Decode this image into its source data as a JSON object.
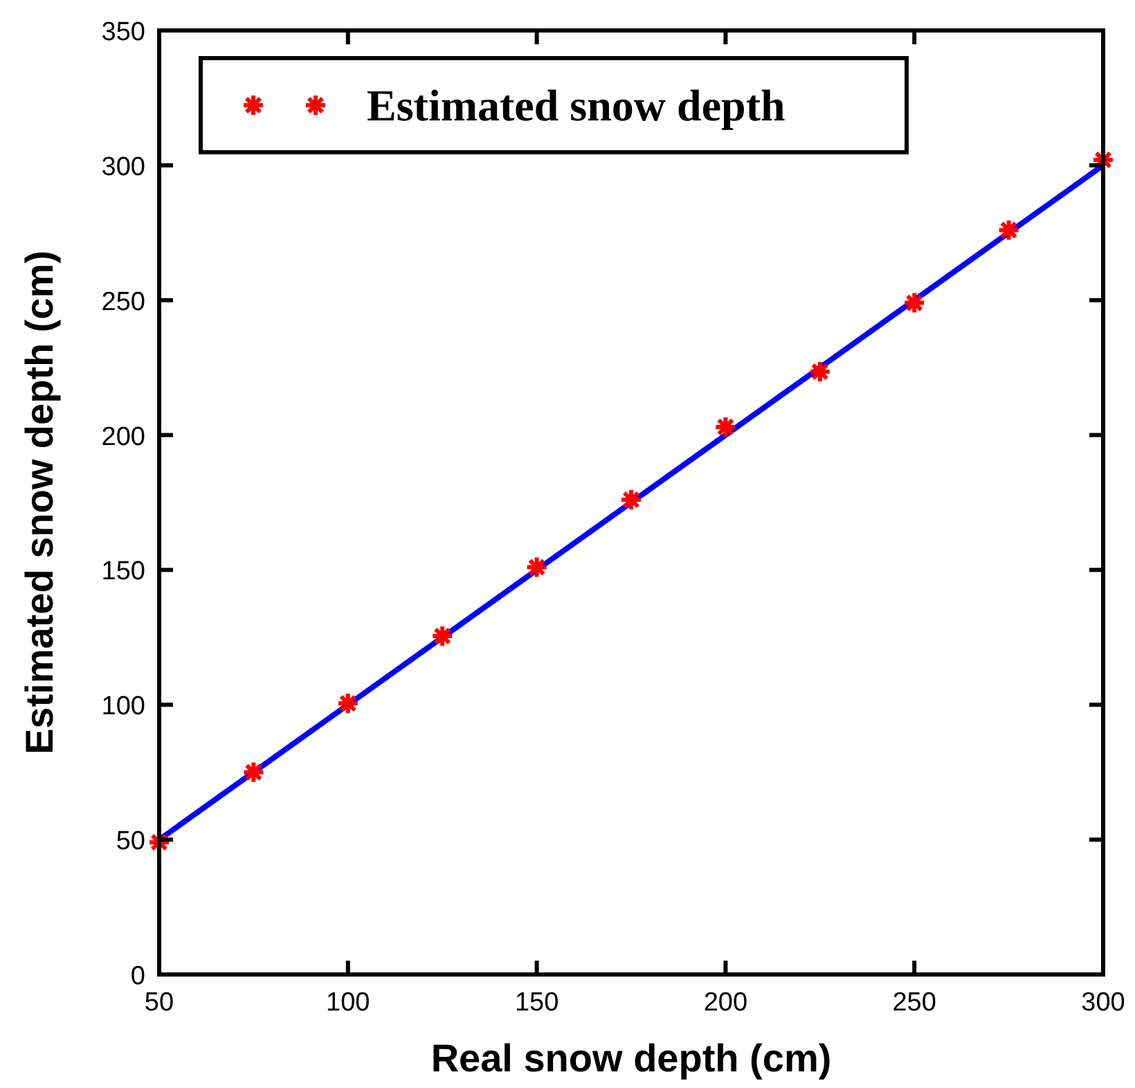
{
  "chart_data": {
    "type": "scatter",
    "xlabel": "Real snow depth (cm)",
    "ylabel": "Estimated snow depth (cm)",
    "x": [
      50,
      75,
      100,
      125,
      150,
      175,
      200,
      225,
      250,
      275,
      300
    ],
    "series": [
      {
        "name": "Estimated snow depth",
        "color": "#ff0000",
        "marker": "cross",
        "values": [
          49,
          75,
          100.5,
          125.5,
          151,
          176,
          203,
          223.5,
          249,
          276,
          302
        ]
      },
      {
        "type": "line",
        "color": "#0000ff",
        "x": [
          50,
          300
        ],
        "values": [
          50,
          300
        ],
        "marker": "none",
        "line_style": "solid"
      }
    ],
    "xlim": [
      50,
      300
    ],
    "xticks": [
      50,
      100,
      150,
      200,
      250,
      300
    ],
    "ylim": [
      0,
      350
    ],
    "yticks": [
      0,
      50,
      100,
      150,
      200,
      250,
      300,
      350
    ],
    "grid": false,
    "legend": "top left"
  }
}
